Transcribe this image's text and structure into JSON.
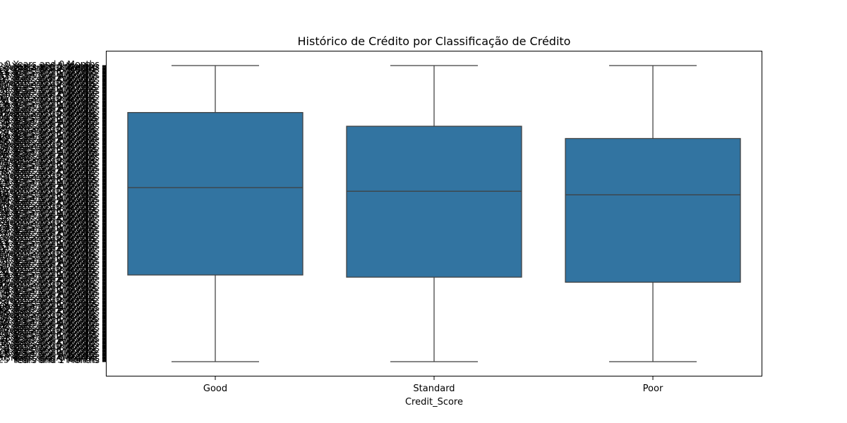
{
  "chart_data": {
    "type": "box",
    "title": "Histórico de Crédito por Classificação de Crédito",
    "xlabel": "Credit_Score",
    "ylabel": "",
    "categories": [
      "Good",
      "Standard",
      "Poor"
    ],
    "box_color": "#3274a1",
    "edge_color": "#3f3f3f",
    "y_axis_note": "Categorical y-axis of ~404 'Credit_History_Age' strings (e.g. '22 Years and 1 Months'); labels overprint and are illegible. Values expressed as category index, 0 = bottom.",
    "y_visible_labels": [
      "Years and 1 Months",
      "Years and 1 Months"
    ],
    "ylim": [
      -8,
      404
    ],
    "boxes": [
      {
        "category": "Good",
        "whisker_low": 0,
        "q1": 120,
        "median": 241,
        "q3": 345,
        "whisker_high": 410
      },
      {
        "category": "Standard",
        "whisker_low": 0,
        "q1": 117,
        "median": 236,
        "q3": 326,
        "whisker_high": 410
      },
      {
        "category": "Poor",
        "whisker_low": 0,
        "q1": 110,
        "median": 231,
        "q3": 309,
        "whisker_high": 410
      }
    ],
    "grid": false,
    "legend": "none"
  }
}
